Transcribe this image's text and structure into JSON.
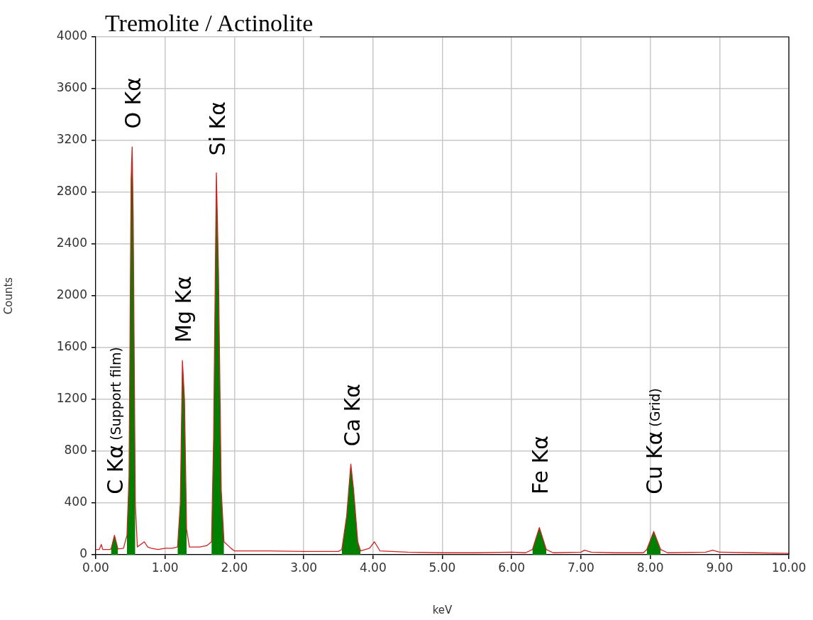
{
  "chart_data": {
    "type": "line",
    "title": "Tremolite / Actinolite",
    "xlabel": "keV",
    "ylabel": "Counts",
    "x": [
      0,
      0.05,
      0.08,
      0.1,
      0.2,
      0.22,
      0.27,
      0.32,
      0.4,
      0.45,
      0.48,
      0.51,
      0.525,
      0.54,
      0.57,
      0.6,
      0.7,
      0.75,
      0.8,
      0.9,
      1.0,
      1.1,
      1.18,
      1.22,
      1.25,
      1.28,
      1.31,
      1.35,
      1.5,
      1.6,
      1.67,
      1.7,
      1.74,
      1.77,
      1.81,
      1.85,
      1.95,
      2.0,
      2.5,
      3.0,
      3.5,
      3.55,
      3.62,
      3.68,
      3.72,
      3.78,
      3.82,
      3.95,
      4.02,
      4.1,
      4.5,
      5.0,
      5.5,
      6.0,
      6.2,
      6.3,
      6.4,
      6.5,
      6.6,
      7.0,
      7.05,
      7.15,
      7.5,
      7.9,
      7.95,
      8.05,
      8.15,
      8.25,
      8.8,
      8.9,
      9.0,
      9.5,
      10.0
    ],
    "series": [
      {
        "type": "line",
        "color": "#d02020",
        "values": [
          40,
          40,
          80,
          40,
          40,
          45,
          150,
          45,
          50,
          150,
          600,
          2900,
          3150,
          2600,
          400,
          60,
          100,
          60,
          50,
          40,
          50,
          50,
          60,
          400,
          1500,
          1200,
          200,
          60,
          60,
          70,
          100,
          900,
          2950,
          2200,
          500,
          100,
          50,
          30,
          30,
          25,
          25,
          40,
          300,
          700,
          500,
          100,
          30,
          50,
          100,
          30,
          20,
          15,
          15,
          20,
          15,
          40,
          210,
          40,
          15,
          20,
          35,
          20,
          15,
          15,
          40,
          180,
          40,
          15,
          20,
          35,
          20,
          15,
          10
        ]
      },
      {
        "type": "area",
        "color": "#008000",
        "values": [
          null,
          null,
          null,
          null,
          null,
          45,
          150,
          45,
          null,
          150,
          600,
          2900,
          3150,
          2600,
          400,
          null,
          null,
          null,
          null,
          null,
          null,
          null,
          60,
          400,
          1500,
          1200,
          200,
          null,
          null,
          null,
          100,
          900,
          2950,
          2200,
          500,
          100,
          null,
          null,
          null,
          null,
          null,
          40,
          300,
          700,
          500,
          100,
          30,
          null,
          null,
          null,
          null,
          null,
          null,
          null,
          null,
          40,
          210,
          40,
          null,
          null,
          null,
          null,
          null,
          null,
          40,
          180,
          40,
          null,
          null,
          null,
          null,
          null,
          null
        ]
      }
    ],
    "xlim": [
      0,
      10
    ],
    "xticks": [
      {
        "value": 0,
        "label": "0.00"
      },
      {
        "value": 1,
        "label": "1.00"
      },
      {
        "value": 2,
        "label": "2.00"
      },
      {
        "value": 3,
        "label": "3.00"
      },
      {
        "value": 4,
        "label": "4.00"
      },
      {
        "value": 5,
        "label": "5.00"
      },
      {
        "value": 6,
        "label": "6.00"
      },
      {
        "value": 7,
        "label": "7.00"
      },
      {
        "value": 8,
        "label": "8.00"
      },
      {
        "value": 9,
        "label": "9.00"
      },
      {
        "value": 10,
        "label": "10.00"
      }
    ],
    "ylim": [
      0,
      4000
    ],
    "yticks": [
      0,
      400,
      800,
      1200,
      1600,
      2000,
      2400,
      2800,
      3200,
      3600,
      4000
    ],
    "grid": true,
    "legend": false,
    "marker": "none",
    "line_style": "solid",
    "annotations": [
      "C Kα (Support film)",
      "O Kα",
      "Mg Kα",
      "Si Kα",
      "Ca Kα",
      "Fe Kα",
      "Cu Kα (Grid)"
    ]
  }
}
